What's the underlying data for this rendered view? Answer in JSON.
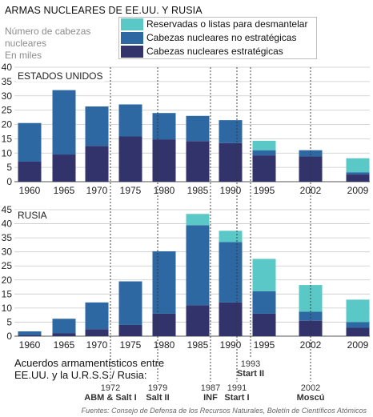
{
  "title": "ARMAS NUCLEARES DE EE.UU. Y RUSIA",
  "unit_label": [
    "Número de cabezas",
    "nucleares",
    "En miles"
  ],
  "legend": [
    {
      "label": "Reservadas o listas para desmantelar",
      "color": "#5bc8c8"
    },
    {
      "label": "Cabezas nucleares no estratégicas",
      "color": "#2e68a3"
    },
    {
      "label": "Cabezas nucleares estratégicas",
      "color": "#33336b"
    }
  ],
  "treaties_title": [
    "Acuerdos armamentísticos entre",
    "EE.UU. y la U.R.S.S./ Rusia:"
  ],
  "treaties": [
    {
      "year": "1972",
      "name": "ABM & Salt I"
    },
    {
      "year": "1979",
      "name": "Salt II"
    },
    {
      "year": "1987",
      "name": "INF"
    },
    {
      "year": "1991",
      "name": "Start I"
    },
    {
      "year": "1993",
      "name": "Start II"
    },
    {
      "year": "2002",
      "name": "Moscú"
    }
  ],
  "source": "Fuentes: Consejo de Defensa de los Recursos Naturales, Boletín de Científicos Atómicos",
  "chart_data": [
    {
      "type": "bar",
      "stacked": true,
      "title": "ESTADOS UNIDOS",
      "categories": [
        "1960",
        "1965",
        "1970",
        "1975",
        "1980",
        "1985",
        "1990",
        "1995",
        "2002",
        "2009"
      ],
      "ylim": [
        0,
        40
      ],
      "yticks": [
        0,
        5,
        10,
        15,
        20,
        25,
        30,
        35,
        40
      ],
      "grid": true,
      "series": [
        {
          "name": "Cabezas nucleares estratégicas",
          "values": [
            7,
            9.5,
            12.5,
            15.8,
            14.8,
            14.2,
            13.5,
            9.2,
            8.8,
            2.5
          ]
        },
        {
          "name": "Cabezas nucleares no estratégicas",
          "values": [
            13.5,
            22.5,
            13.8,
            11.2,
            9.2,
            8.8,
            8,
            1.8,
            2.2,
            0.8
          ]
        },
        {
          "name": "Reservadas o listas para desmantelar",
          "values": [
            0,
            0,
            0,
            0,
            0,
            0,
            0,
            3.3,
            0,
            4.9
          ]
        }
      ]
    },
    {
      "type": "bar",
      "stacked": true,
      "title": "RUSIA",
      "categories": [
        "1960",
        "1965",
        "1970",
        "1975",
        "1980",
        "1985",
        "1990",
        "1995",
        "2002",
        "2009"
      ],
      "ylim": [
        0,
        45
      ],
      "yticks": [
        0,
        5,
        10,
        15,
        20,
        25,
        30,
        35,
        40,
        45
      ],
      "grid": true,
      "series": [
        {
          "name": "Cabezas nucleares estratégicas",
          "values": [
            0.4,
            1,
            2.5,
            4,
            8,
            11,
            12,
            8,
            5.5,
            3
          ]
        },
        {
          "name": "Cabezas nucleares no estratégicas",
          "values": [
            1.3,
            5.2,
            9.5,
            15.5,
            22.2,
            28.5,
            21.5,
            8,
            3.2,
            2
          ]
        },
        {
          "name": "Reservadas o listas para desmantelar",
          "values": [
            0,
            0,
            0,
            0,
            0,
            4,
            4,
            11.5,
            9.5,
            8
          ]
        }
      ]
    }
  ]
}
